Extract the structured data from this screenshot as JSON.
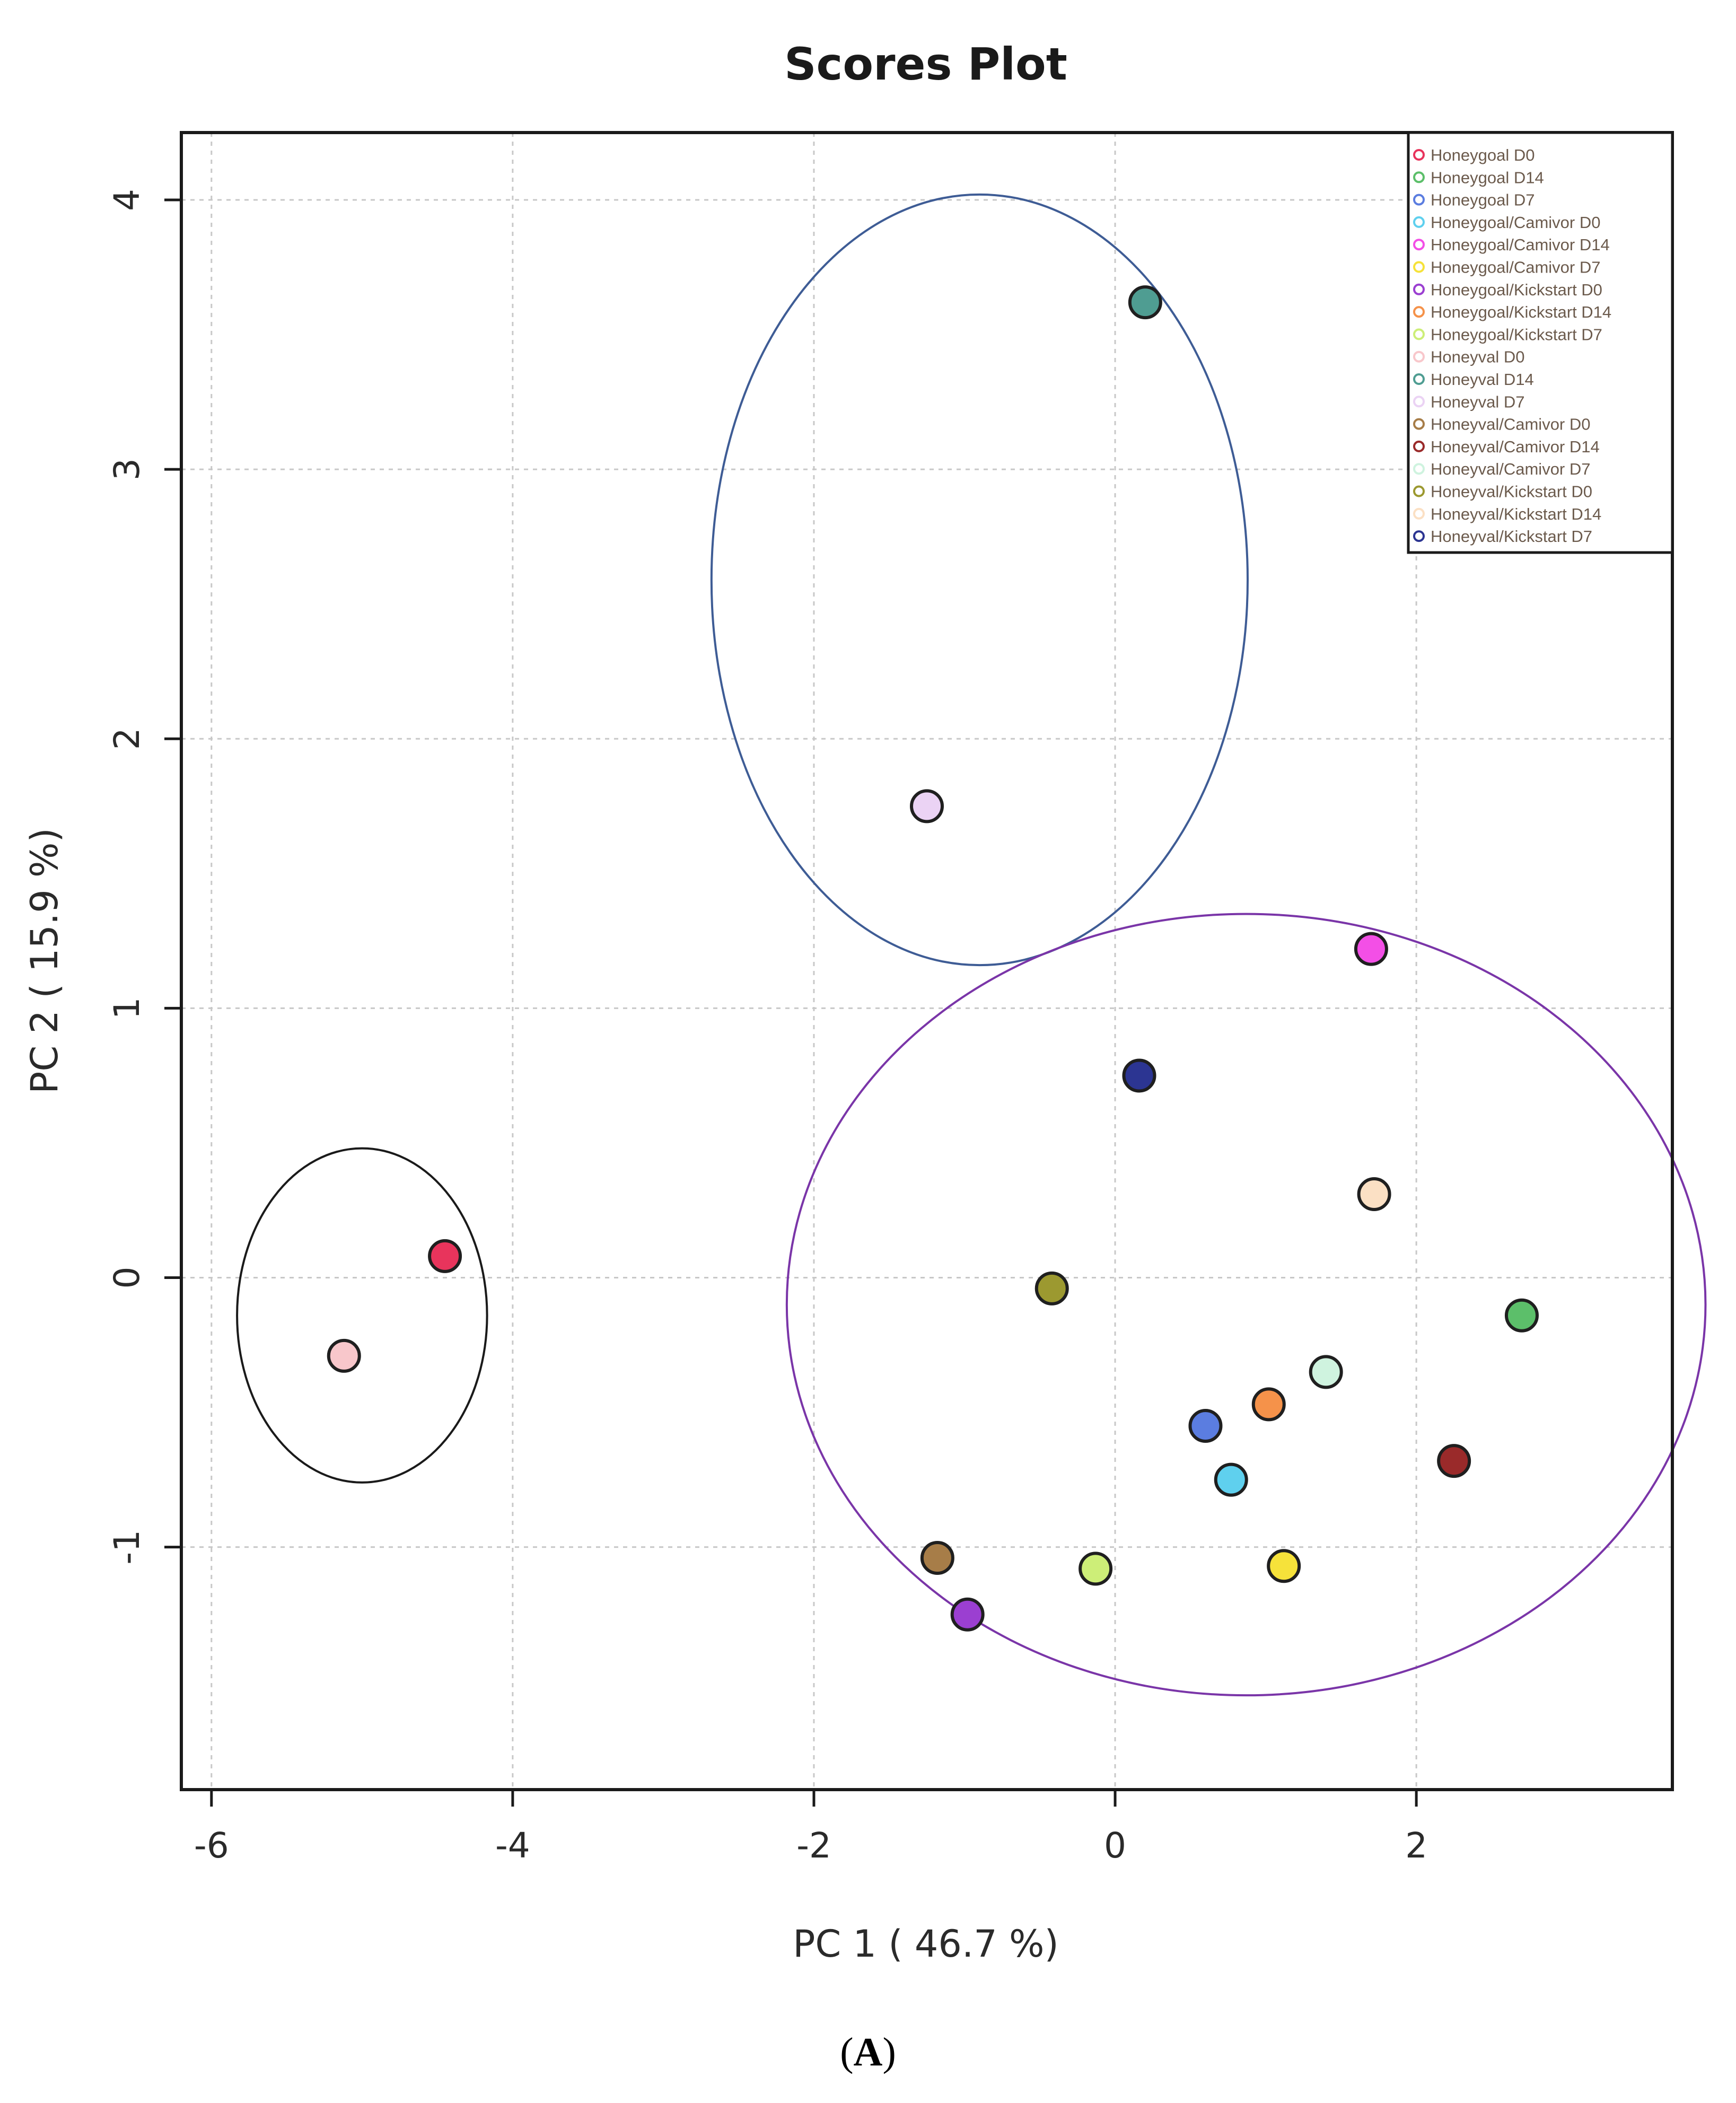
{
  "chart_data": {
    "type": "scatter",
    "title": "Scores Plot",
    "xlabel": "PC 1 ( 46.7 %)",
    "ylabel": "PC 2 ( 15.9 %)",
    "xlim": [
      -6.2,
      3.7
    ],
    "ylim": [
      -1.9,
      4.25
    ],
    "xticks": [
      -6,
      -4,
      -2,
      0,
      2
    ],
    "yticks": [
      -1,
      0,
      1,
      2,
      3,
      4
    ],
    "grid": true,
    "legend_position": "top-right",
    "series": [
      {
        "name": "Honeygoal D0",
        "color": "#e8345c",
        "x": -4.45,
        "y": 0.08
      },
      {
        "name": "Honeygoal D14",
        "color": "#5cbf6a",
        "x": 2.7,
        "y": -0.14
      },
      {
        "name": "Honeygoal D7",
        "color": "#5b7de0",
        "x": 0.6,
        "y": -0.55
      },
      {
        "name": "Honeygoal/Camivor D0",
        "color": "#5fd0ee",
        "x": 0.77,
        "y": -0.75
      },
      {
        "name": "Honeygoal/Camivor D14",
        "color": "#f34fe6",
        "x": 1.7,
        "y": 1.22
      },
      {
        "name": "Honeygoal/Camivor D7",
        "color": "#f6e23a",
        "x": 1.12,
        "y": -1.07
      },
      {
        "name": "Honeygoal/Kickstart D0",
        "color": "#9b3fd1",
        "x": -0.98,
        "y": -1.25
      },
      {
        "name": "Honeygoal/Kickstart D14",
        "color": "#f5924a",
        "x": 1.02,
        "y": -0.47
      },
      {
        "name": "Honeygoal/Kickstart D7",
        "color": "#cdee78",
        "x": -0.13,
        "y": -1.08
      },
      {
        "name": "Honeyval D0",
        "color": "#f8c7cb",
        "x": -5.12,
        "y": -0.29
      },
      {
        "name": "Honeyval D14",
        "color": "#4f9d92",
        "x": 0.2,
        "y": 3.62
      },
      {
        "name": "Honeyval D7",
        "color": "#ebd3f4",
        "x": -1.25,
        "y": 1.75
      },
      {
        "name": "Honeyval/Camivor D0",
        "color": "#a77d48",
        "x": -1.18,
        "y": -1.04
      },
      {
        "name": "Honeyval/Camivor D14",
        "color": "#9a2a2a",
        "x": 2.25,
        "y": -0.68
      },
      {
        "name": "Honeyval/Camivor D7",
        "color": "#cff3df",
        "x": 1.4,
        "y": -0.35
      },
      {
        "name": "Honeyval/Kickstart D0",
        "color": "#9c9930",
        "x": -0.42,
        "y": -0.04
      },
      {
        "name": "Honeyval/Kickstart D14",
        "color": "#fbe0c4",
        "x": 1.72,
        "y": 0.31
      },
      {
        "name": "Honeyval/Kickstart D7",
        "color": "#2c3592",
        "x": 0.16,
        "y": 0.75
      }
    ],
    "ellipses": [
      {
        "name": "group-1",
        "color": "#1a1a1a",
        "cx": -5.0,
        "cy": -0.14,
        "rx": 0.83,
        "ry": 0.62
      },
      {
        "name": "group-2",
        "color": "#3e5c95",
        "cx": -0.9,
        "cy": 2.59,
        "rx": 1.78,
        "ry": 1.43
      },
      {
        "name": "group-3",
        "color": "#7a35a8",
        "cx": 0.87,
        "cy": -0.1,
        "rx": 3.05,
        "ry": 1.45
      }
    ]
  },
  "caption": {
    "open": "(",
    "letter": "A",
    "close": ")"
  }
}
